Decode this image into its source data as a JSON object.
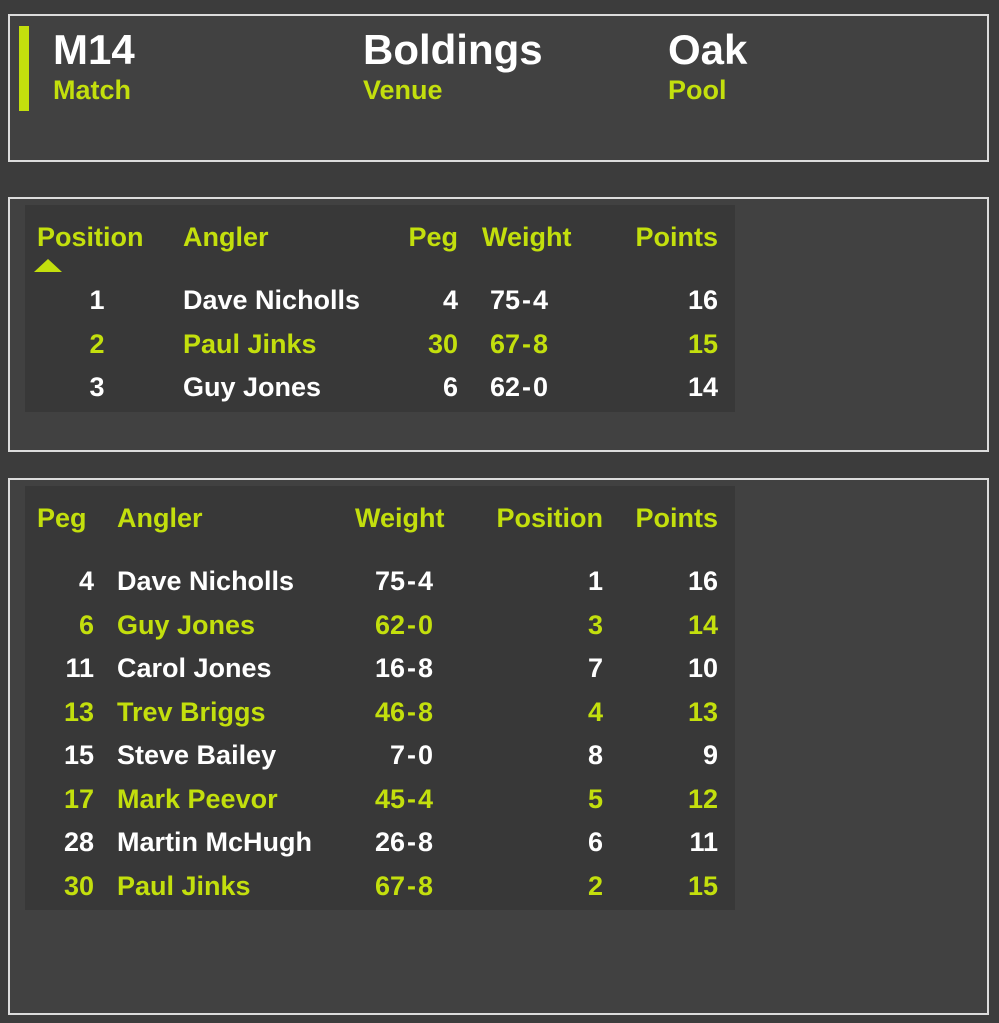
{
  "colors": {
    "accent": "#c3df0d",
    "text_primary": "#ffffff",
    "page_background": "#3c3c3c",
    "panel_background": "#414141",
    "table_background": "#383838",
    "panel_border": "#dcdcdc"
  },
  "format": {
    "weight_separator": "-"
  },
  "header": {
    "match": {
      "value": "M14",
      "label": "Match"
    },
    "venue": {
      "value": "Boldings",
      "label": "Venue"
    },
    "pool": {
      "value": "Oak",
      "label": "Pool"
    }
  },
  "results_table": {
    "columns": [
      "Position",
      "Angler",
      "Peg",
      "Weight",
      "Points"
    ],
    "sort": {
      "column": "Position",
      "direction": "ascending"
    },
    "rows": [
      {
        "position": "1",
        "angler": "Dave Nicholls",
        "peg": "4",
        "weight": "75-4",
        "weight_lb": "75",
        "weight_oz": "4",
        "points": "16"
      },
      {
        "position": "2",
        "angler": "Paul Jinks",
        "peg": "30",
        "weight": "67-8",
        "weight_lb": "67",
        "weight_oz": "8",
        "points": "15"
      },
      {
        "position": "3",
        "angler": "Guy Jones",
        "peg": "6",
        "weight": "62-0",
        "weight_lb": "62",
        "weight_oz": "0",
        "points": "14"
      }
    ]
  },
  "peg_table": {
    "columns": [
      "Peg",
      "Angler",
      "Weight",
      "Position",
      "Points"
    ],
    "rows": [
      {
        "peg": "4",
        "angler": "Dave Nicholls",
        "weight": "75-4",
        "weight_lb": "75",
        "weight_oz": "4",
        "position": "1",
        "points": "16"
      },
      {
        "peg": "6",
        "angler": "Guy Jones",
        "weight": "62-0",
        "weight_lb": "62",
        "weight_oz": "0",
        "position": "3",
        "points": "14"
      },
      {
        "peg": "11",
        "angler": "Carol Jones",
        "weight": "16-8",
        "weight_lb": "16",
        "weight_oz": "8",
        "position": "7",
        "points": "10"
      },
      {
        "peg": "13",
        "angler": "Trev Briggs",
        "weight": "46-8",
        "weight_lb": "46",
        "weight_oz": "8",
        "position": "4",
        "points": "13"
      },
      {
        "peg": "15",
        "angler": "Steve Bailey",
        "weight": "7-0",
        "weight_lb": "7",
        "weight_oz": "0",
        "position": "8",
        "points": "9"
      },
      {
        "peg": "17",
        "angler": "Mark Peevor",
        "weight": "45-4",
        "weight_lb": "45",
        "weight_oz": "4",
        "position": "5",
        "points": "12"
      },
      {
        "peg": "28",
        "angler": "Martin McHugh",
        "weight": "26-8",
        "weight_lb": "26",
        "weight_oz": "8",
        "position": "6",
        "points": "11"
      },
      {
        "peg": "30",
        "angler": "Paul Jinks",
        "weight": "67-8",
        "weight_lb": "67",
        "weight_oz": "8",
        "position": "2",
        "points": "15"
      }
    ]
  }
}
